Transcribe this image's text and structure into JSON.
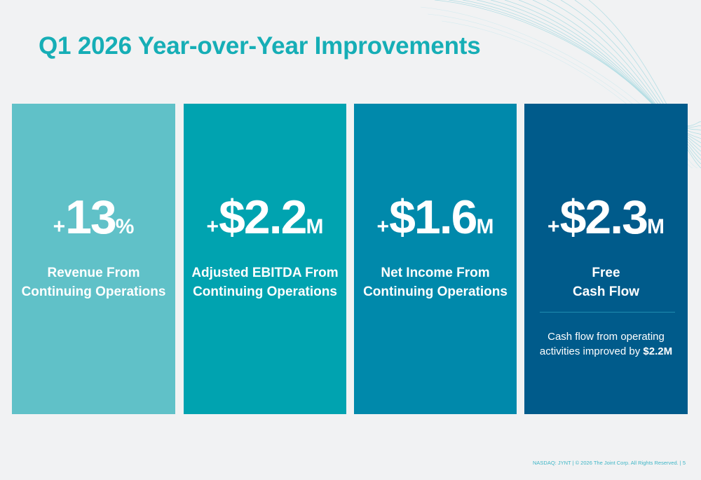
{
  "title": "Q1 2026 Year-over-Year Improvements",
  "cards": [
    {
      "sign": "+",
      "value": "13",
      "unit": "%",
      "label_line1": "Revenue From",
      "label_line2": "Continuing Operations"
    },
    {
      "sign": "+",
      "value": "$2.2",
      "unit": "M",
      "label_line1": "Adjusted EBITDA From",
      "label_line2": "Continuing Operations"
    },
    {
      "sign": "+",
      "value": "$1.6",
      "unit": "M",
      "label_line1": "Net Income From",
      "label_line2": "Continuing Operations"
    },
    {
      "sign": "+",
      "value": "$2.3",
      "unit": "M",
      "label_line1": "Free",
      "label_line2": "Cash Flow",
      "note_line1": "Cash flow from operating",
      "note_line2_prefix": "activities improved by ",
      "note_highlight": "$2.2M"
    }
  ],
  "colors": {
    "title": "#16aeb6",
    "card1": "#60c1c8",
    "card2": "#00a3b0",
    "card3": "#0089ab",
    "card4": "#005b8b",
    "background": "#f1f2f3"
  },
  "footer": "NASDAQ: JYNT  |  © 2026 The Joint Corp. All Rights Reserved.  |  5"
}
